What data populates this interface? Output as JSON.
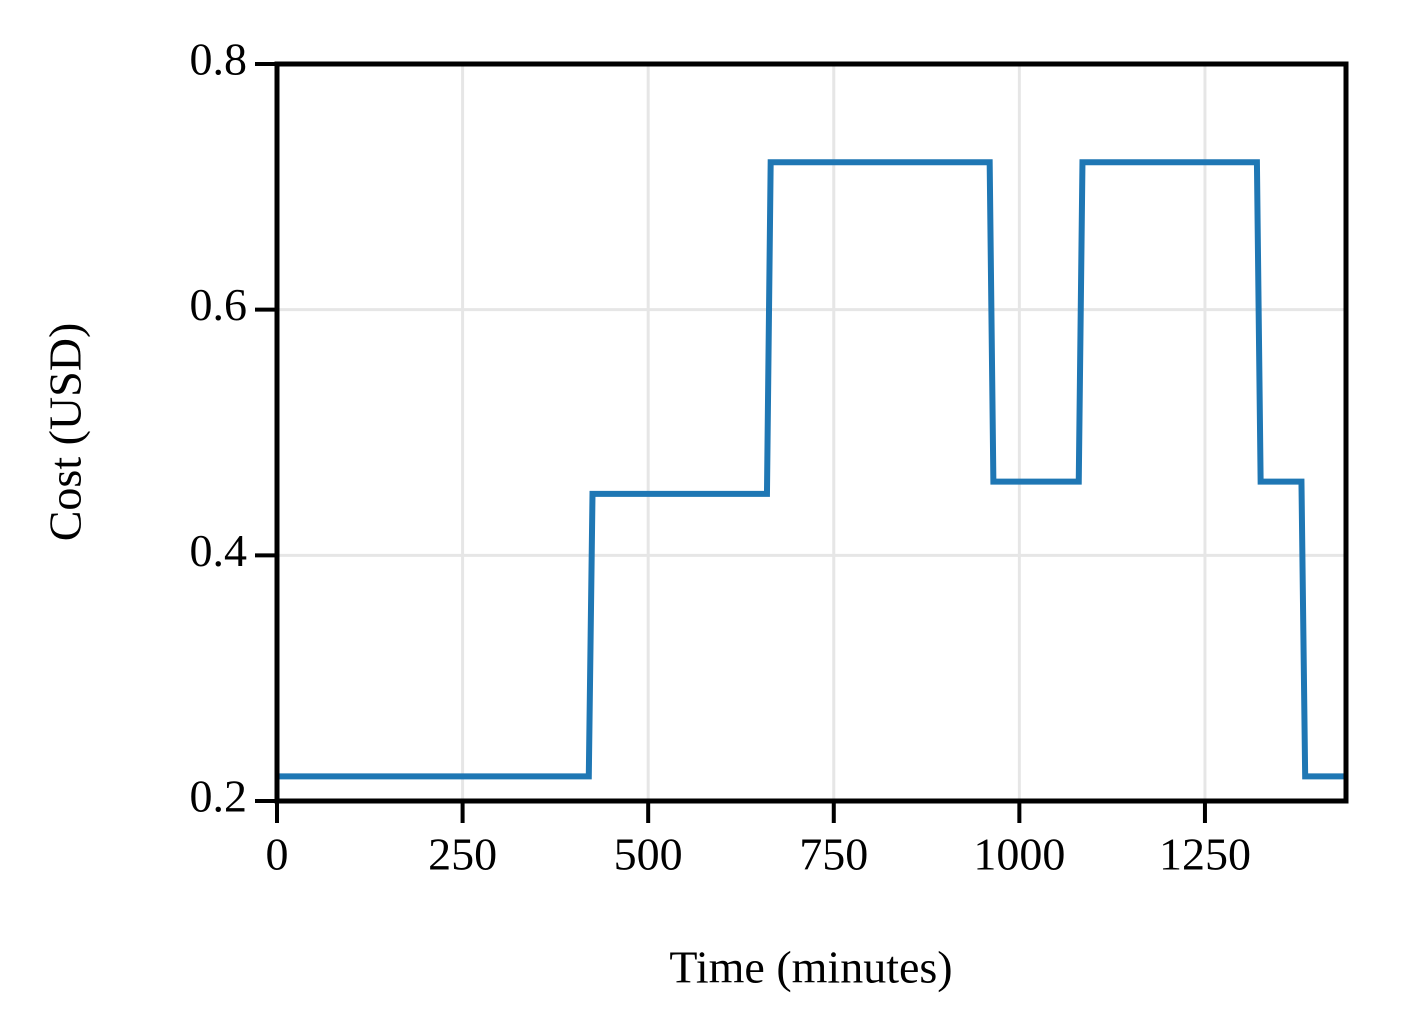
{
  "chart_data": {
    "type": "line",
    "x_label": "Time (minutes)",
    "y_label": "Cost (USD)",
    "x": [
      0,
      420,
      425,
      660,
      665,
      960,
      965,
      1080,
      1085,
      1320,
      1325,
      1380,
      1385,
      1440
    ],
    "series": [
      {
        "color": "#1f77b4",
        "values": [
          0.22,
          0.22,
          0.45,
          0.45,
          0.72,
          0.72,
          0.46,
          0.46,
          0.72,
          0.72,
          0.46,
          0.46,
          0.22,
          0.22
        ]
      }
    ],
    "xlim": [
      0,
      1440
    ],
    "xticks": [
      0,
      250,
      500,
      750,
      1000,
      1250
    ],
    "ylim": [
      0.2,
      0.8
    ],
    "yticks": [
      0.2,
      0.4,
      0.6,
      0.8
    ],
    "grid": true
  }
}
